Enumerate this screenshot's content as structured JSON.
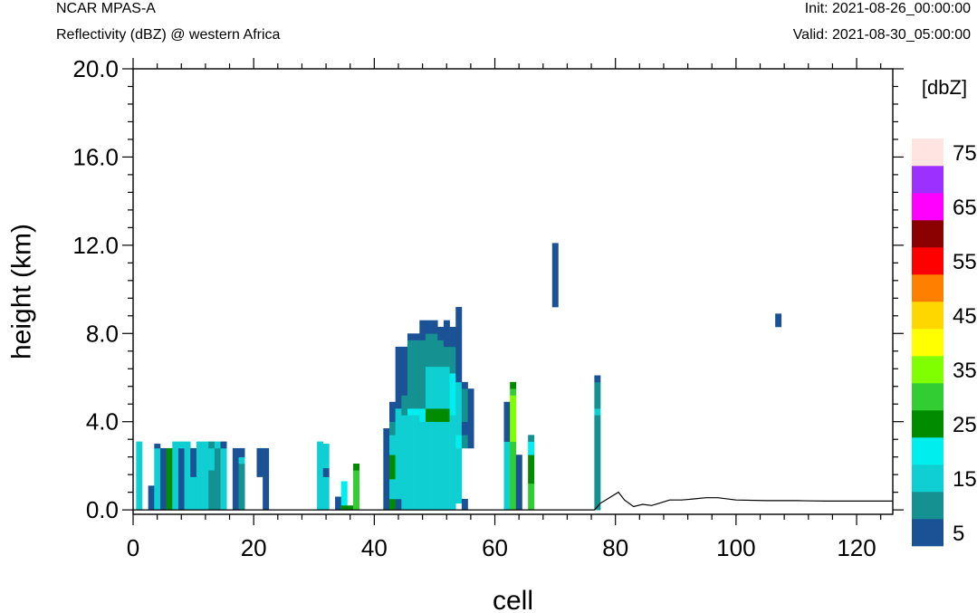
{
  "header": {
    "model": "NCAR MPAS-A",
    "field": "Reflectivity (dBZ) @ western Africa",
    "init": "Init: 2021-08-26_00:00:00",
    "valid": "Valid: 2021-08-30_05:00:00"
  },
  "colors": {
    "c5": "#1a5295",
    "c10": "#149190",
    "c15": "#0fcfd2",
    "c20": "#00eeee",
    "c25": "#008b00",
    "c30": "#32cd32",
    "c35": "#7fff00",
    "c40": "#ffff00",
    "c45": "#ffd700",
    "c50": "#ff7f00",
    "c55": "#ff0000",
    "c60": "#8b0000",
    "c65": "#ff00ff",
    "c70": "#9b30ff",
    "c75": "#ffe4e1"
  },
  "chart_data": {
    "type": "heatmap",
    "xlabel": "cell",
    "ylabel": "height (km)",
    "xlim": [
      0,
      126
    ],
    "ylim": [
      -0.2,
      20.0
    ],
    "xticks": [
      0,
      20,
      40,
      60,
      80,
      100,
      120
    ],
    "yticks": [
      0.0,
      4.0,
      8.0,
      12.0,
      16.0,
      20.0
    ],
    "xtick_labels": [
      "0",
      "20",
      "40",
      "60",
      "80",
      "100",
      "120"
    ],
    "ytick_labels": [
      "0.0",
      "4.0",
      "8.0",
      "12.0",
      "16.0",
      "20.0"
    ],
    "colorbar": {
      "title": "[dbZ]",
      "levels": [
        5,
        10,
        15,
        20,
        25,
        30,
        35,
        40,
        45,
        50,
        55,
        60,
        65,
        70,
        75
      ],
      "labels": [
        "5",
        "15",
        "25",
        "35",
        "45",
        "55",
        "65",
        "75"
      ],
      "label_values": [
        5,
        15,
        25,
        35,
        45,
        55,
        65,
        75
      ]
    },
    "columns": [
      {
        "x": 1,
        "segments": [
          [
            0.0,
            3.1,
            15
          ]
        ]
      },
      {
        "x": 3,
        "segments": [
          [
            0.0,
            1.1,
            5
          ]
        ]
      },
      {
        "x": 4,
        "segments": [
          [
            0.0,
            2.8,
            15
          ],
          [
            2.8,
            3.0,
            5
          ]
        ]
      },
      {
        "x": 5,
        "segments": [
          [
            0.0,
            2.8,
            5
          ]
        ]
      },
      {
        "x": 6,
        "segments": [
          [
            0.0,
            2.8,
            25
          ]
        ]
      },
      {
        "x": 7,
        "segments": [
          [
            0.0,
            3.1,
            15
          ]
        ]
      },
      {
        "x": 8,
        "segments": [
          [
            0.0,
            2.8,
            5
          ],
          [
            2.8,
            3.1,
            15
          ]
        ]
      },
      {
        "x": 9,
        "segments": [
          [
            0.0,
            3.1,
            15
          ]
        ]
      },
      {
        "x": 10,
        "segments": [
          [
            0.0,
            1.5,
            15
          ],
          [
            1.5,
            2.8,
            5
          ]
        ]
      },
      {
        "x": 11,
        "segments": [
          [
            0.0,
            3.1,
            15
          ]
        ]
      },
      {
        "x": 12,
        "segments": [
          [
            0.0,
            3.1,
            15
          ]
        ]
      },
      {
        "x": 13,
        "segments": [
          [
            0.0,
            1.8,
            10
          ],
          [
            1.8,
            2.8,
            15
          ],
          [
            2.8,
            3.1,
            10
          ]
        ]
      },
      {
        "x": 14,
        "segments": [
          [
            0.0,
            2.8,
            10
          ],
          [
            2.8,
            3.1,
            15
          ]
        ]
      },
      {
        "x": 15,
        "segments": [
          [
            0.0,
            2.8,
            15
          ],
          [
            2.8,
            3.1,
            5
          ]
        ]
      },
      {
        "x": 17,
        "segments": [
          [
            0.0,
            2.8,
            5
          ]
        ]
      },
      {
        "x": 18,
        "segments": [
          [
            0.0,
            2.1,
            10
          ],
          [
            2.1,
            2.4,
            15
          ],
          [
            2.4,
            2.8,
            5
          ]
        ]
      },
      {
        "x": 21,
        "segments": [
          [
            1.5,
            2.8,
            5
          ]
        ]
      },
      {
        "x": 22,
        "segments": [
          [
            0.0,
            1.5,
            5
          ],
          [
            1.5,
            2.8,
            5
          ]
        ]
      },
      {
        "x": 31,
        "segments": [
          [
            0.0,
            3.1,
            15
          ]
        ]
      },
      {
        "x": 32,
        "segments": [
          [
            0.0,
            1.5,
            15
          ],
          [
            1.5,
            1.9,
            5
          ],
          [
            1.9,
            3.0,
            15
          ]
        ]
      },
      {
        "x": 34,
        "segments": [
          [
            0.0,
            0.6,
            5
          ]
        ]
      },
      {
        "x": 35,
        "segments": [
          [
            0.0,
            1.3,
            20
          ],
          [
            0.0,
            0.2,
            25
          ]
        ]
      },
      {
        "x": 36,
        "segments": [
          [
            0.0,
            0.2,
            25
          ]
        ]
      },
      {
        "x": 37,
        "segments": [
          [
            0.0,
            1.8,
            30
          ],
          [
            1.8,
            2.1,
            25
          ]
        ]
      },
      {
        "x": 42,
        "segments": [
          [
            0.0,
            3.7,
            5
          ]
        ]
      },
      {
        "x": 43,
        "segments": [
          [
            0.0,
            0.5,
            25
          ],
          [
            0.5,
            1.4,
            15
          ],
          [
            1.4,
            2.5,
            25
          ],
          [
            2.5,
            3.4,
            15
          ],
          [
            3.4,
            4.0,
            10
          ],
          [
            4.0,
            4.9,
            5
          ]
        ]
      },
      {
        "x": 44,
        "segments": [
          [
            0.0,
            0.5,
            5
          ],
          [
            0.5,
            4.6,
            15
          ],
          [
            4.6,
            6.5,
            5
          ],
          [
            6.5,
            7.4,
            5
          ]
        ]
      },
      {
        "x": 45,
        "segments": [
          [
            0.0,
            4.3,
            15
          ],
          [
            4.3,
            5.2,
            10
          ],
          [
            5.2,
            7.4,
            5
          ]
        ]
      },
      {
        "x": 46,
        "segments": [
          [
            0.0,
            4.3,
            15
          ],
          [
            4.3,
            4.6,
            20
          ],
          [
            4.6,
            7.7,
            10
          ],
          [
            7.7,
            8.0,
            5
          ]
        ]
      },
      {
        "x": 47,
        "segments": [
          [
            0.0,
            4.3,
            15
          ],
          [
            4.3,
            4.6,
            20
          ],
          [
            4.6,
            7.7,
            10
          ],
          [
            7.7,
            8.0,
            5
          ]
        ]
      },
      {
        "x": 48,
        "segments": [
          [
            0.0,
            4.0,
            15
          ],
          [
            4.0,
            4.6,
            20
          ],
          [
            4.6,
            7.7,
            10
          ],
          [
            7.7,
            8.6,
            5
          ]
        ]
      },
      {
        "x": 49,
        "segments": [
          [
            0.0,
            4.0,
            15
          ],
          [
            4.0,
            4.6,
            25
          ],
          [
            4.6,
            6.5,
            15
          ],
          [
            6.5,
            8.0,
            10
          ],
          [
            8.0,
            8.6,
            5
          ]
        ]
      },
      {
        "x": 50,
        "segments": [
          [
            0.0,
            4.0,
            15
          ],
          [
            4.0,
            4.6,
            25
          ],
          [
            4.6,
            6.5,
            15
          ],
          [
            6.5,
            8.0,
            10
          ],
          [
            8.0,
            8.6,
            5
          ]
        ]
      },
      {
        "x": 51,
        "segments": [
          [
            0.0,
            4.0,
            15
          ],
          [
            4.0,
            4.6,
            25
          ],
          [
            4.6,
            6.5,
            15
          ],
          [
            6.5,
            7.7,
            10
          ],
          [
            7.7,
            8.3,
            5
          ]
        ]
      },
      {
        "x": 52,
        "segments": [
          [
            0.0,
            4.0,
            15
          ],
          [
            4.0,
            4.6,
            25
          ],
          [
            4.6,
            6.5,
            15
          ],
          [
            6.5,
            7.4,
            10
          ],
          [
            7.4,
            8.6,
            5
          ]
        ]
      },
      {
        "x": 53,
        "segments": [
          [
            0.0,
            4.3,
            15
          ],
          [
            4.3,
            6.2,
            20
          ],
          [
            6.2,
            7.4,
            10
          ],
          [
            7.4,
            8.3,
            5
          ]
        ]
      },
      {
        "x": 54,
        "segments": [
          [
            0.3,
            2.8,
            15
          ],
          [
            2.8,
            3.4,
            20
          ],
          [
            3.4,
            5.8,
            15
          ],
          [
            5.8,
            9.2,
            5
          ]
        ]
      },
      {
        "x": 55,
        "segments": [
          [
            0.0,
            0.5,
            5
          ],
          [
            2.8,
            3.4,
            10
          ],
          [
            3.4,
            4.0,
            5
          ],
          [
            4.0,
            5.5,
            10
          ],
          [
            5.5,
            5.8,
            5
          ]
        ]
      },
      {
        "x": 56,
        "segments": [
          [
            2.8,
            3.7,
            5
          ],
          [
            3.7,
            5.5,
            5
          ]
        ]
      },
      {
        "x": 62,
        "segments": [
          [
            0.0,
            3.1,
            15
          ],
          [
            3.1,
            4.3,
            5
          ],
          [
            4.3,
            4.9,
            5
          ]
        ]
      },
      {
        "x": 63,
        "segments": [
          [
            0.0,
            3.1,
            30
          ],
          [
            3.1,
            5.2,
            35
          ],
          [
            5.2,
            5.5,
            30
          ],
          [
            5.5,
            5.8,
            25
          ]
        ]
      },
      {
        "x": 64,
        "segments": [
          [
            0.0,
            2.5,
            5
          ]
        ]
      },
      {
        "x": 66,
        "segments": [
          [
            0.0,
            1.2,
            30
          ],
          [
            1.2,
            2.5,
            25
          ],
          [
            2.5,
            3.1,
            20
          ],
          [
            3.1,
            3.4,
            10
          ]
        ]
      },
      {
        "x": 70,
        "segments": [
          [
            9.2,
            12.1,
            5
          ]
        ]
      },
      {
        "x": 77,
        "segments": [
          [
            0.0,
            4.3,
            10
          ],
          [
            4.3,
            4.6,
            15
          ],
          [
            4.6,
            5.8,
            10
          ],
          [
            5.8,
            6.1,
            5
          ]
        ]
      },
      {
        "x": 107,
        "segments": [
          [
            8.3,
            8.9,
            5
          ]
        ]
      }
    ],
    "terrain": {
      "x": [
        0,
        76.5,
        77.5,
        79,
        80.5,
        81.5,
        83,
        84.5,
        86,
        87.5,
        89,
        91,
        93,
        95,
        97,
        100,
        105,
        110,
        115,
        120,
        126
      ],
      "y": [
        0.0,
        0.0,
        0.3,
        0.55,
        0.8,
        0.45,
        0.15,
        0.25,
        0.2,
        0.32,
        0.45,
        0.45,
        0.5,
        0.55,
        0.55,
        0.45,
        0.42,
        0.42,
        0.4,
        0.4,
        0.4
      ]
    }
  }
}
